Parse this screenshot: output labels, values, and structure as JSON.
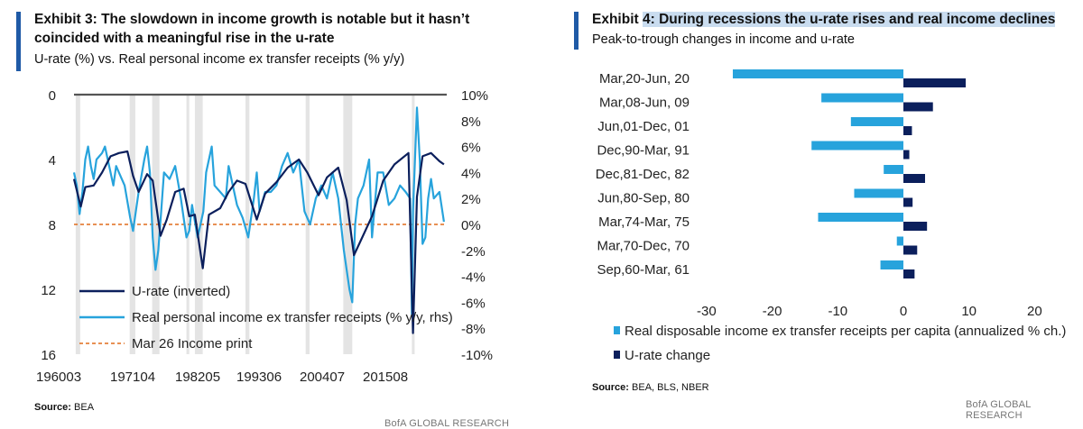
{
  "left": {
    "title_line1": "Exhibit 3: The slowdown in income growth is notable but it hasn’t",
    "title_line2": "coincided with a meaningful rise in the u-rate",
    "subtitle": "U-rate (%) vs. Real personal income ex transfer receipts (% y/y)",
    "source_label": "Source:",
    "source_value": "BEA",
    "brand": "BofA GLOBAL RESEARCH",
    "colors": {
      "urate": "#0b1f5c",
      "income": "#27a3dc",
      "print": "#e06c1b",
      "recession": "#e4e4e4",
      "zero": "#555555"
    }
  },
  "right": {
    "title_prefix": "Exhibit ",
    "title_hl": "4: During recessions the u-rate rises and real income declines",
    "subtitle": "Peak-to-trough changes in income and u-rate",
    "source_label": "Source:",
    "source_value": "BEA, BLS, NBER",
    "brand": "BofA GLOBAL RESEARCH",
    "colors": {
      "income": "#27a3dc",
      "urate": "#0b1f5c"
    }
  },
  "chart_data": [
    {
      "type": "line",
      "x_ticks": [
        "196003",
        "197104",
        "198205",
        "199306",
        "200407",
        "201508"
      ],
      "y_left": {
        "ticks": [
          "0",
          "4",
          "8",
          "12",
          "16"
        ],
        "range": [
          16,
          0
        ],
        "inverted": true
      },
      "y_right": {
        "ticks": [
          "10%",
          "8%",
          "6%",
          "4%",
          "2%",
          "0%",
          "-2%",
          "-4%",
          "-6%",
          "-8%",
          "-10%"
        ],
        "range": [
          -10,
          10
        ]
      },
      "x_range": [
        1960.0,
        2026.3
      ],
      "recessions": [
        [
          1960.3,
          1961.1
        ],
        [
          1969.9,
          1970.9
        ],
        [
          1973.9,
          1975.2
        ],
        [
          1980.0,
          1980.5
        ],
        [
          1981.5,
          1982.9
        ],
        [
          1990.5,
          1991.2
        ],
        [
          2001.2,
          2001.9
        ],
        [
          2007.9,
          2009.5
        ],
        [
          2020.1,
          2020.4
        ]
      ],
      "series": [
        {
          "name": "U-rate (inverted)",
          "axis": "left",
          "points": [
            [
              1960.0,
              5.2
            ],
            [
              1961.2,
              6.9
            ],
            [
              1962.0,
              5.7
            ],
            [
              1963.5,
              5.6
            ],
            [
              1965.0,
              4.8
            ],
            [
              1966.5,
              3.8
            ],
            [
              1968.0,
              3.6
            ],
            [
              1969.5,
              3.5
            ],
            [
              1970.5,
              5.0
            ],
            [
              1971.5,
              6.0
            ],
            [
              1973.0,
              4.9
            ],
            [
              1974.0,
              5.3
            ],
            [
              1975.4,
              8.7
            ],
            [
              1976.5,
              7.7
            ],
            [
              1978.0,
              6.0
            ],
            [
              1979.5,
              5.8
            ],
            [
              1980.5,
              7.5
            ],
            [
              1981.5,
              7.4
            ],
            [
              1982.9,
              10.7
            ],
            [
              1984.0,
              7.4
            ],
            [
              1986.0,
              7.0
            ],
            [
              1987.5,
              6.0
            ],
            [
              1989.0,
              5.3
            ],
            [
              1990.5,
              5.5
            ],
            [
              1992.5,
              7.7
            ],
            [
              1994.0,
              6.1
            ],
            [
              1996.0,
              5.4
            ],
            [
              1998.0,
              4.5
            ],
            [
              2000.0,
              4.0
            ],
            [
              2001.5,
              4.8
            ],
            [
              2003.5,
              6.2
            ],
            [
              2005.0,
              5.1
            ],
            [
              2007.0,
              4.5
            ],
            [
              2008.5,
              6.5
            ],
            [
              2009.8,
              9.9
            ],
            [
              2011.0,
              9.0
            ],
            [
              2013.0,
              7.5
            ],
            [
              2015.0,
              5.3
            ],
            [
              2017.0,
              4.3
            ],
            [
              2019.5,
              3.6
            ],
            [
              2020.3,
              14.7
            ],
            [
              2021.0,
              6.3
            ],
            [
              2022.0,
              3.8
            ],
            [
              2023.5,
              3.6
            ],
            [
              2025.0,
              4.1
            ],
            [
              2025.8,
              4.3
            ]
          ]
        },
        {
          "name": "Real personal income ex transfer receipts (% y/y, rhs)",
          "axis": "right",
          "points": [
            [
              1960.0,
              4.0
            ],
            [
              1960.5,
              3.0
            ],
            [
              1961.0,
              0.8
            ],
            [
              1961.5,
              2.5
            ],
            [
              1962.0,
              5.0
            ],
            [
              1962.5,
              6.0
            ],
            [
              1963.0,
              4.5
            ],
            [
              1963.5,
              3.5
            ],
            [
              1964.0,
              5.0
            ],
            [
              1965.0,
              5.5
            ],
            [
              1965.5,
              6.0
            ],
            [
              1966.0,
              5.0
            ],
            [
              1967.0,
              3.0
            ],
            [
              1967.5,
              4.5
            ],
            [
              1968.0,
              4.0
            ],
            [
              1969.0,
              3.0
            ],
            [
              1970.0,
              0.5
            ],
            [
              1970.5,
              -0.5
            ],
            [
              1971.0,
              1.0
            ],
            [
              1971.5,
              2.5
            ],
            [
              1972.5,
              5.0
            ],
            [
              1973.0,
              6.0
            ],
            [
              1973.5,
              4.0
            ],
            [
              1974.0,
              -1.0
            ],
            [
              1974.5,
              -3.5
            ],
            [
              1975.0,
              -2.0
            ],
            [
              1975.5,
              1.0
            ],
            [
              1976.0,
              4.0
            ],
            [
              1977.0,
              3.5
            ],
            [
              1978.0,
              4.5
            ],
            [
              1979.0,
              2.0
            ],
            [
              1980.0,
              -1.0
            ],
            [
              1980.5,
              -0.5
            ],
            [
              1981.0,
              1.5
            ],
            [
              1982.0,
              -1.0
            ],
            [
              1983.0,
              1.0
            ],
            [
              1983.5,
              4.0
            ],
            [
              1984.5,
              6.0
            ],
            [
              1985.0,
              3.0
            ],
            [
              1986.0,
              2.5
            ],
            [
              1987.0,
              2.0
            ],
            [
              1987.5,
              4.5
            ],
            [
              1988.5,
              2.5
            ],
            [
              1989.0,
              1.5
            ],
            [
              1990.0,
              0.5
            ],
            [
              1991.0,
              -1.0
            ],
            [
              1992.0,
              2.0
            ],
            [
              1992.5,
              4.0
            ],
            [
              1993.0,
              1.0
            ],
            [
              1994.0,
              2.5
            ],
            [
              1995.0,
              2.5
            ],
            [
              1996.0,
              3.0
            ],
            [
              1997.0,
              4.5
            ],
            [
              1998.0,
              5.5
            ],
            [
              1999.0,
              4.0
            ],
            [
              2000.0,
              5.0
            ],
            [
              2001.0,
              1.0
            ],
            [
              2002.0,
              0.0
            ],
            [
              2003.0,
              2.0
            ],
            [
              2004.0,
              3.0
            ],
            [
              2005.0,
              2.0
            ],
            [
              2006.0,
              4.0
            ],
            [
              2007.0,
              2.0
            ],
            [
              2008.0,
              -2.0
            ],
            [
              2009.0,
              -5.0
            ],
            [
              2009.5,
              -6.0
            ],
            [
              2010.0,
              0.0
            ],
            [
              2010.5,
              2.0
            ],
            [
              2011.5,
              3.0
            ],
            [
              2012.5,
              5.0
            ],
            [
              2013.0,
              -1.0
            ],
            [
              2014.0,
              4.0
            ],
            [
              2015.0,
              4.0
            ],
            [
              2016.0,
              1.5
            ],
            [
              2017.0,
              2.0
            ],
            [
              2018.0,
              3.0
            ],
            [
              2019.0,
              2.5
            ],
            [
              2019.8,
              2.0
            ],
            [
              2020.1,
              -7.0
            ],
            [
              2020.3,
              1.0
            ],
            [
              2021.0,
              9.0
            ],
            [
              2021.5,
              5.0
            ],
            [
              2022.0,
              -1.5
            ],
            [
              2022.5,
              -1.0
            ],
            [
              2023.0,
              2.0
            ],
            [
              2023.5,
              3.5
            ],
            [
              2024.0,
              2.0
            ],
            [
              2025.0,
              2.5
            ],
            [
              2025.8,
              0.2
            ]
          ]
        },
        {
          "name": "Mar 26 Income print",
          "axis": "right",
          "constant": 0
        }
      ]
    },
    {
      "type": "bar",
      "orientation": "horizontal",
      "categories": [
        "Mar,20-Jun, 20",
        "Mar,08-Jun, 09",
        "Jun,01-Dec, 01",
        "Dec,90-Mar, 91",
        "Dec,81-Dec, 82",
        "Jun,80-Sep, 80",
        "Mar,74-Mar, 75",
        "Mar,70-Dec, 70",
        "Sep,60-Mar, 61"
      ],
      "x_ticks": [
        "-30",
        "-20",
        "-10",
        "0",
        "10",
        "20"
      ],
      "x_range": [
        -30,
        20
      ],
      "series": [
        {
          "name": "Real disposable income ex transfer receipts per capita (annualized % ch.)",
          "values": [
            -26.0,
            -12.5,
            -8.0,
            -14.0,
            -3.0,
            -7.5,
            -13.0,
            -1.0,
            -3.5
          ]
        },
        {
          "name": "U-rate change",
          "values": [
            9.5,
            4.5,
            1.3,
            0.9,
            3.3,
            1.4,
            3.6,
            2.1,
            1.7
          ]
        }
      ]
    }
  ]
}
